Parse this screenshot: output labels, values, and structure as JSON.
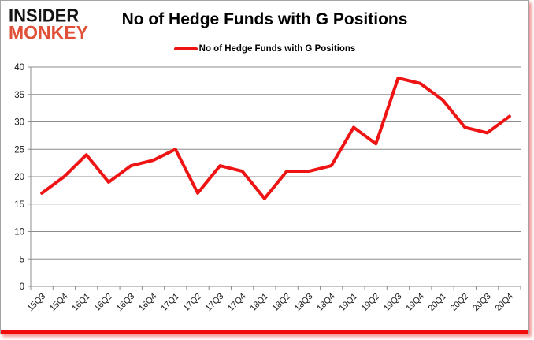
{
  "logo": {
    "line1": "INSIDER",
    "line2": "MONKEY"
  },
  "title": "No of Hedge Funds with G Positions",
  "legend": {
    "label": "No of Hedge Funds with G Positions"
  },
  "colors": {
    "line": "#ee1414",
    "grid": "#8c8c8c",
    "axis": "#8c8c8c",
    "tick_text": "#1a1a1a",
    "logo_black": "#141414",
    "logo_red": "#e05038",
    "frame_accent": "#f20d0d"
  },
  "chart_data": {
    "type": "line",
    "title": "No of Hedge Funds with G Positions",
    "categories": [
      "15Q3",
      "15Q4",
      "16Q1",
      "16Q2",
      "16Q3",
      "16Q4",
      "17Q1",
      "17Q2",
      "17Q3",
      "17Q4",
      "18Q1",
      "18Q2",
      "18Q3",
      "18Q4",
      "19Q1",
      "19Q2",
      "19Q3",
      "19Q4",
      "20Q1",
      "20Q2",
      "20Q3",
      "20Q4"
    ],
    "series": [
      {
        "name": "No of Hedge Funds with G Positions",
        "values": [
          17,
          20,
          24,
          19,
          22,
          23,
          25,
          17,
          22,
          21,
          16,
          21,
          21,
          22,
          29,
          26,
          38,
          37,
          34,
          29,
          28,
          31
        ]
      }
    ],
    "xlabel": "",
    "ylabel": "",
    "ylim": [
      0,
      40
    ],
    "ytick_interval": 5,
    "grid": true,
    "legend_position": "top-center"
  }
}
